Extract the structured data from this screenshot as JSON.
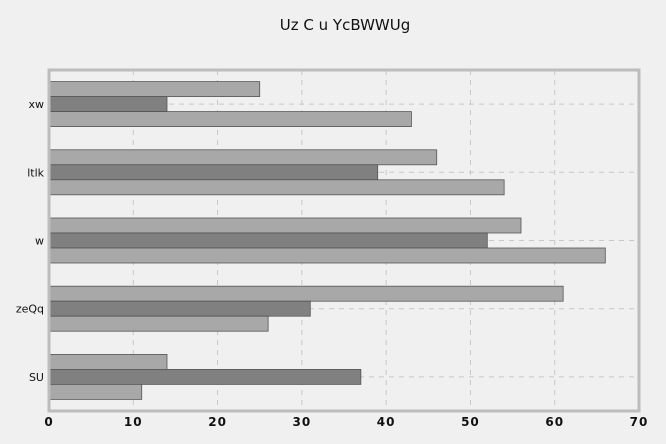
{
  "chart_data": {
    "type": "bar",
    "orientation": "horizontal",
    "title": "Uz C u YcBWWUg",
    "xlabel": "",
    "ylabel": "",
    "categories": [
      "xw",
      "ltlk",
      "w",
      "zeQq",
      "SU"
    ],
    "series": [
      {
        "color": "#a8a8a8",
        "values": [
          25,
          46,
          56,
          61,
          14
        ]
      },
      {
        "color": "#808080",
        "values": [
          14,
          39,
          52,
          31,
          37
        ]
      },
      {
        "color": "#a8a8a8",
        "values": [
          43,
          54,
          66,
          26,
          11
        ]
      }
    ],
    "xlim": [
      0,
      70
    ],
    "xticks": [
      0,
      10,
      20,
      30,
      40,
      50,
      60,
      70
    ],
    "grid": true,
    "legend": "none"
  }
}
